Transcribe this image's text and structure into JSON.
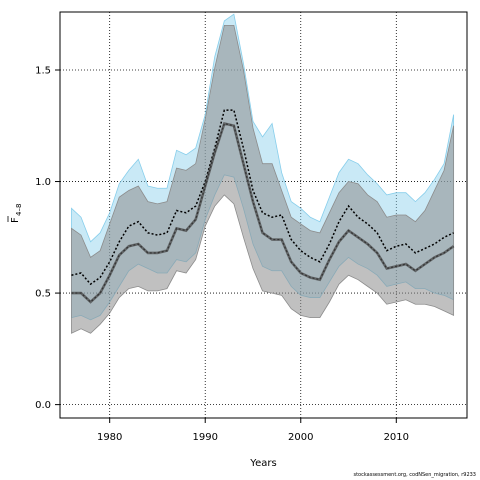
{
  "chart_data": {
    "type": "area",
    "xlabel": "Years",
    "ylabel_main": "F",
    "ylabel_sub": "4–8",
    "xlim": [
      1974.8,
      2017.4
    ],
    "ylim": [
      -0.06,
      1.76
    ],
    "xticks": [
      1980,
      1990,
      2000,
      2010
    ],
    "yticks": [
      0.0,
      0.5,
      1.0,
      1.5
    ],
    "ytick_labels": [
      "0.0",
      "0.5",
      "1.0",
      "1.5"
    ],
    "grid": true,
    "years": [
      1976,
      1977,
      1978,
      1979,
      1980,
      1981,
      1982,
      1983,
      1984,
      1985,
      1986,
      1987,
      1988,
      1989,
      1990,
      1991,
      1992,
      1993,
      1994,
      1995,
      1996,
      1997,
      1998,
      1999,
      2000,
      2001,
      2002,
      2003,
      2004,
      2005,
      2006,
      2007,
      2008,
      2009,
      2010,
      2011,
      2012,
      2013,
      2014,
      2015,
      2016
    ],
    "series": [
      {
        "key": "blue",
        "color_line": "#000000",
        "color_fill": "#87CEEB",
        "fill_opacity": 0.45,
        "estimate": [
          0.58,
          0.59,
          0.54,
          0.57,
          0.64,
          0.73,
          0.8,
          0.82,
          0.77,
          0.76,
          0.77,
          0.87,
          0.86,
          0.89,
          1.0,
          1.15,
          1.32,
          1.32,
          1.15,
          0.96,
          0.86,
          0.84,
          0.85,
          0.74,
          0.69,
          0.66,
          0.64,
          0.72,
          0.82,
          0.89,
          0.84,
          0.81,
          0.77,
          0.69,
          0.71,
          0.72,
          0.68,
          0.7,
          0.72,
          0.75,
          0.77
        ],
        "upper": [
          0.88,
          0.84,
          0.73,
          0.77,
          0.86,
          0.99,
          1.05,
          1.1,
          0.98,
          0.97,
          0.97,
          1.14,
          1.12,
          1.15,
          1.3,
          1.56,
          1.72,
          1.75,
          1.53,
          1.27,
          1.2,
          1.26,
          1.04,
          0.91,
          0.88,
          0.84,
          0.82,
          0.93,
          1.04,
          1.1,
          1.08,
          1.03,
          0.99,
          0.94,
          0.95,
          0.95,
          0.91,
          0.95,
          1.01,
          1.08,
          1.3
        ],
        "lower": [
          0.39,
          0.4,
          0.38,
          0.4,
          0.46,
          0.53,
          0.6,
          0.63,
          0.61,
          0.59,
          0.59,
          0.65,
          0.64,
          0.68,
          0.83,
          0.94,
          1.03,
          1.02,
          0.88,
          0.72,
          0.62,
          0.6,
          0.6,
          0.53,
          0.49,
          0.48,
          0.48,
          0.55,
          0.62,
          0.66,
          0.63,
          0.61,
          0.58,
          0.53,
          0.54,
          0.55,
          0.52,
          0.52,
          0.5,
          0.49,
          0.47
        ]
      },
      {
        "key": "grey",
        "color_line": "#555555",
        "color_fill": "#8c8c8c",
        "fill_opacity": 0.55,
        "estimate": [
          0.5,
          0.5,
          0.46,
          0.5,
          0.58,
          0.67,
          0.71,
          0.72,
          0.68,
          0.68,
          0.69,
          0.79,
          0.78,
          0.83,
          0.98,
          1.13,
          1.26,
          1.25,
          1.08,
          0.91,
          0.77,
          0.74,
          0.74,
          0.64,
          0.59,
          0.57,
          0.56,
          0.65,
          0.73,
          0.78,
          0.75,
          0.72,
          0.68,
          0.61,
          0.62,
          0.63,
          0.6,
          0.63,
          0.66,
          0.68,
          0.71
        ],
        "upper": [
          0.79,
          0.76,
          0.66,
          0.69,
          0.81,
          0.93,
          0.96,
          0.98,
          0.91,
          0.9,
          0.91,
          1.06,
          1.05,
          1.08,
          1.28,
          1.51,
          1.7,
          1.7,
          1.5,
          1.24,
          1.08,
          1.08,
          0.96,
          0.84,
          0.81,
          0.78,
          0.77,
          0.86,
          0.95,
          1.0,
          0.99,
          0.94,
          0.91,
          0.84,
          0.85,
          0.85,
          0.82,
          0.87,
          0.96,
          1.05,
          1.25
        ],
        "lower": [
          0.32,
          0.34,
          0.32,
          0.36,
          0.41,
          0.48,
          0.52,
          0.53,
          0.51,
          0.51,
          0.52,
          0.6,
          0.59,
          0.65,
          0.8,
          0.89,
          0.94,
          0.9,
          0.75,
          0.61,
          0.51,
          0.5,
          0.49,
          0.43,
          0.4,
          0.39,
          0.39,
          0.46,
          0.54,
          0.58,
          0.56,
          0.53,
          0.5,
          0.45,
          0.46,
          0.47,
          0.45,
          0.45,
          0.44,
          0.42,
          0.4
        ]
      }
    ]
  },
  "footer": {
    "credit": "stockassessment.org, codNSen_migration, r9233"
  }
}
